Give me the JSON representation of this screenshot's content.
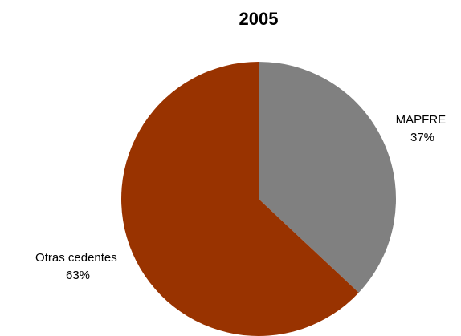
{
  "chart_data": {
    "type": "pie",
    "title": "2005",
    "slices": [
      {
        "label": "MAPFRE",
        "value": 37,
        "percent_label": "37%",
        "color": "#808080"
      },
      {
        "label": "Otras cedentes",
        "value": 63,
        "percent_label": "63%",
        "color": "#993300"
      }
    ],
    "legend": "none",
    "start": "12 o'clock",
    "direction": "clockwise"
  }
}
